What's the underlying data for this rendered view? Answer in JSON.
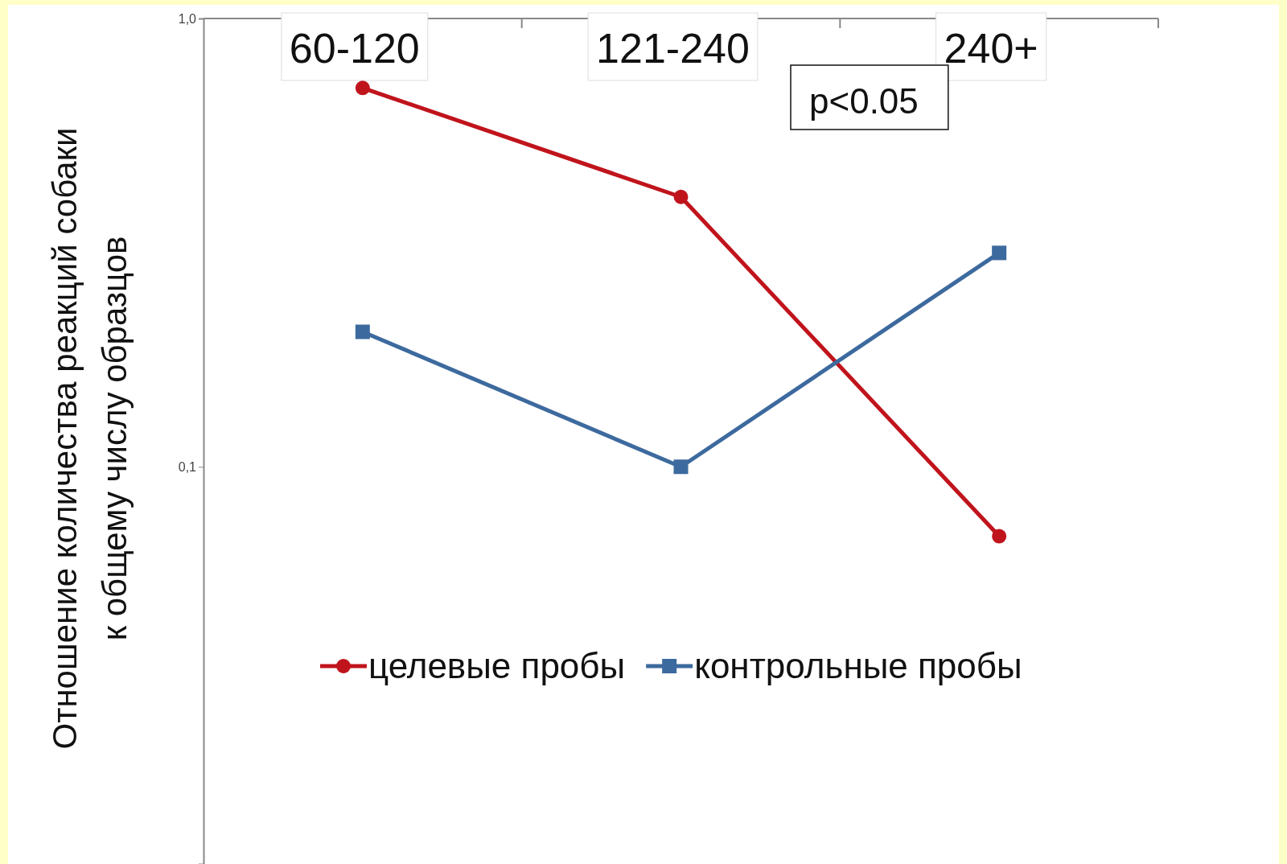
{
  "chart_data": {
    "type": "line",
    "ylabel": "Отношение количества реакций собаки\nк общему числу образцов",
    "categories": [
      "60-120",
      "121-240",
      "240+"
    ],
    "series": [
      {
        "name": "целевые пробы",
        "color": "#c0141c",
        "values": [
          0.7,
          0.4,
          0.07
        ],
        "marker": "circle"
      },
      {
        "name": "контрольные пробы",
        "color": "#3d6a9e",
        "values": [
          0.2,
          0.1,
          0.3
        ],
        "marker": "square"
      }
    ],
    "log": "y",
    "ylim": [
      0.013,
      1
    ],
    "yticks": [
      {
        "value": 1,
        "label": "1,0"
      },
      {
        "value": 0.1,
        "label": "0,1"
      }
    ],
    "grid": false,
    "legend": "bottom",
    "annotations": [
      "p<0.05"
    ]
  }
}
